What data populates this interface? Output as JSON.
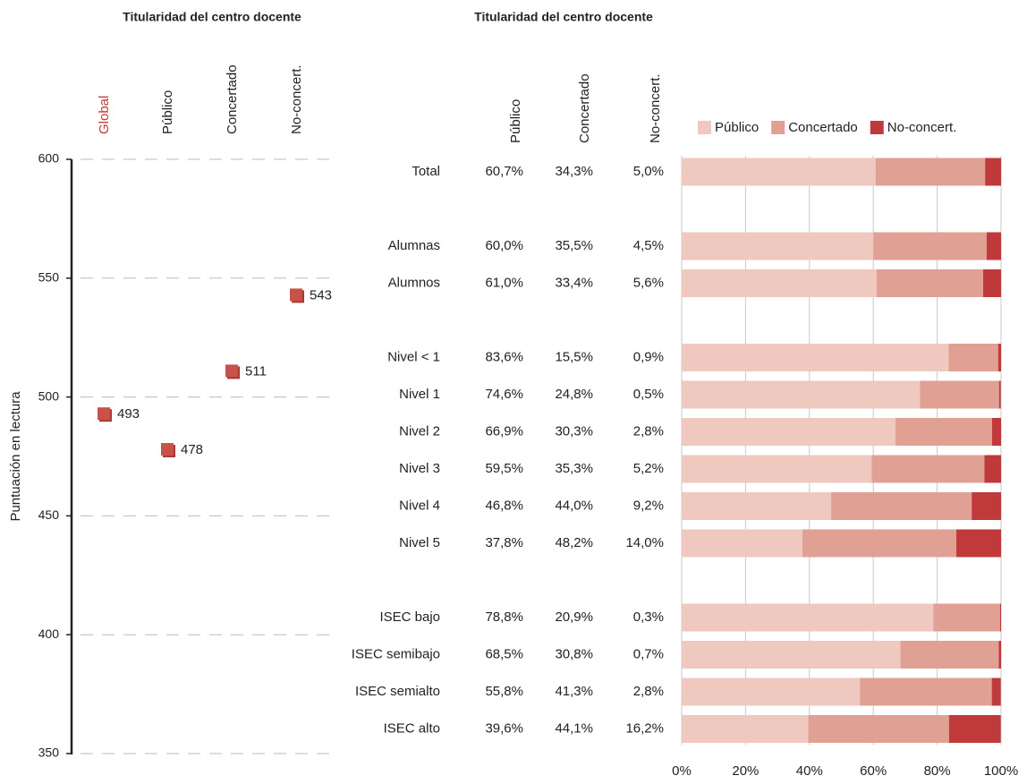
{
  "chart_data": [
    {
      "type": "dot",
      "title": "Titularidad del centro docente",
      "ylabel": "Puntuación en lectura",
      "categories": [
        "Global",
        "Público",
        "Concertado",
        "No-concert."
      ],
      "label_colors": [
        "#c0393b",
        "#222222",
        "#222222",
        "#222222"
      ],
      "values": [
        493,
        478,
        511,
        543
      ],
      "color": "#c8524a",
      "ylim": [
        350,
        600
      ],
      "yticks": [
        350,
        400,
        450,
        500,
        550,
        600
      ],
      "grid": true
    },
    {
      "type": "stacked_bar_h",
      "title": "Titularidad del centro docente",
      "categories": [
        "Total",
        null,
        "Alumnas",
        "Alumnos",
        null,
        "Nivel < 1",
        "Nivel 1",
        "Nivel 2",
        "Nivel 3",
        "Nivel 4",
        "Nivel 5",
        null,
        "ISEC bajo",
        "ISEC semibajo",
        "ISEC semialto",
        "ISEC alto"
      ],
      "series": [
        {
          "name": "Público",
          "color": "#efc9c0",
          "values": [
            60.7,
            null,
            60.0,
            61.0,
            null,
            83.6,
            74.6,
            66.9,
            59.5,
            46.8,
            37.8,
            null,
            78.8,
            68.5,
            55.8,
            39.6
          ],
          "value_labels": [
            "60,7%",
            null,
            "60,0%",
            "61,0%",
            null,
            "83,6%",
            "74,6%",
            "66,9%",
            "59,5%",
            "46,8%",
            "37,8%",
            null,
            "78,8%",
            "68,5%",
            "55,8%",
            "39,6%"
          ]
        },
        {
          "name": "Concertado",
          "color": "#e0a093",
          "values": [
            34.3,
            null,
            35.5,
            33.4,
            null,
            15.5,
            24.8,
            30.3,
            35.3,
            44.0,
            48.2,
            null,
            20.9,
            30.8,
            41.3,
            44.1
          ],
          "value_labels": [
            "34,3%",
            null,
            "35,5%",
            "33,4%",
            null,
            "15,5%",
            "24,8%",
            "30,3%",
            "35,3%",
            "44,0%",
            "48,2%",
            null,
            "20,9%",
            "30,8%",
            "41,3%",
            "44,1%"
          ]
        },
        {
          "name": "No-concert.",
          "color": "#c0393b",
          "values": [
            5.0,
            null,
            4.5,
            5.6,
            null,
            0.9,
            0.5,
            2.8,
            5.2,
            9.2,
            14.0,
            null,
            0.3,
            0.7,
            2.8,
            16.2
          ],
          "value_labels": [
            "5,0%",
            null,
            "4,5%",
            "5,6%",
            null,
            "0,9%",
            "0,5%",
            "2,8%",
            "5,2%",
            "9,2%",
            "14,0%",
            null,
            "0,3%",
            "0,7%",
            "2,8%",
            "16,2%"
          ]
        }
      ],
      "xlim": [
        0,
        100
      ],
      "xticks": [
        {
          "value": 0,
          "label": "0%"
        },
        {
          "value": 20,
          "label": "20%"
        },
        {
          "value": 40,
          "label": "40%"
        },
        {
          "value": 60,
          "label": "60%"
        },
        {
          "value": 80,
          "label": "80%"
        },
        {
          "value": 100,
          "label": "100%"
        }
      ],
      "grid": true,
      "legend": "top"
    }
  ]
}
